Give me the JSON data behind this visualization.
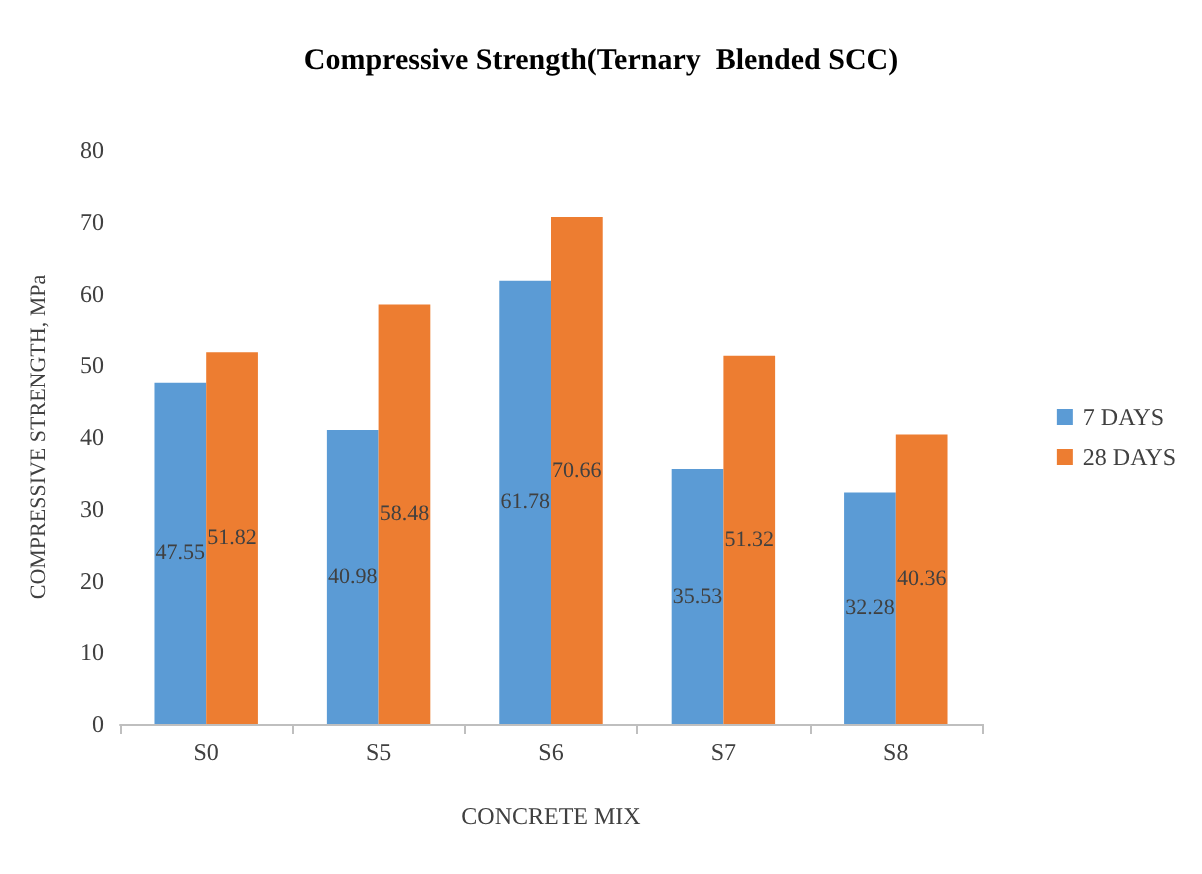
{
  "chart_data": {
    "type": "bar",
    "title": "Compressive Strength(Ternary  Blended SCC)",
    "xlabel": "CONCRETE MIX",
    "ylabel": "COMPRESSIVE STRENGTH, MPa",
    "categories": [
      "S0",
      "S5",
      "S6",
      "S7",
      "S8"
    ],
    "series": [
      {
        "name": "7 DAYS",
        "color": "#5b9bd5",
        "values": [
          47.55,
          40.98,
          61.78,
          35.53,
          32.28
        ]
      },
      {
        "name": "28 DAYS",
        "color": "#ed7d31",
        "values": [
          51.82,
          58.48,
          70.66,
          51.32,
          40.36
        ]
      }
    ],
    "ylim": [
      0,
      80
    ],
    "yticks": [
      0,
      10,
      20,
      30,
      40,
      50,
      60,
      70,
      80
    ],
    "grid": false,
    "legend": "right",
    "data_labels": true
  }
}
